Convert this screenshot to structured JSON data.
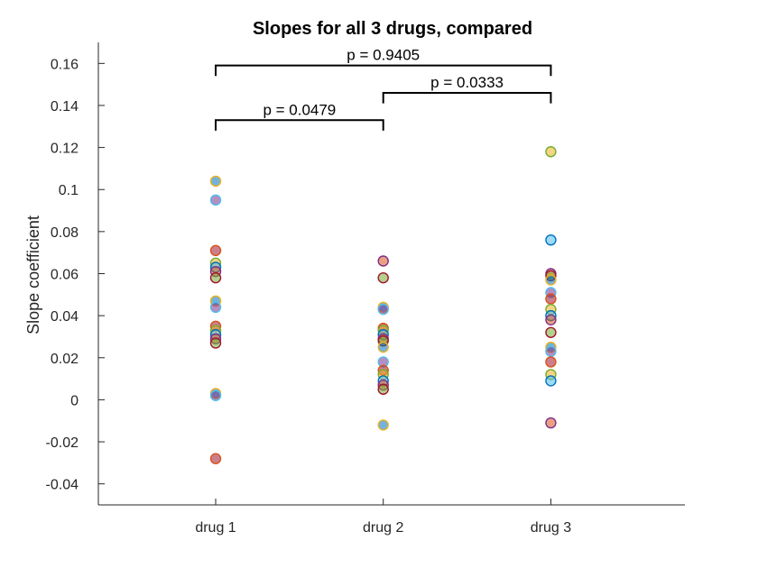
{
  "chart_data": {
    "type": "scatter",
    "title": "Slopes for all 3 drugs, compared",
    "xlabel": "",
    "ylabel": "Slope coefficient",
    "categories": [
      "drug 1",
      "drug 2",
      "drug 3"
    ],
    "xlim": [
      0.3,
      3.8
    ],
    "ylim": [
      -0.05,
      0.17
    ],
    "yticks": [
      "-0.04",
      "-0.02",
      "0",
      "0.02",
      "0.04",
      "0.06",
      "0.08",
      "0.1",
      "0.12",
      "0.14",
      "0.16"
    ],
    "grid": false,
    "series": [
      {
        "category": "drug 1",
        "values": [
          0.104,
          0.095,
          0.071,
          0.065,
          0.063,
          0.061,
          0.058,
          0.047,
          0.044,
          0.035,
          0.033,
          0.031,
          0.029,
          0.027,
          0.003,
          0.002,
          -0.028
        ]
      },
      {
        "category": "drug 2",
        "values": [
          0.066,
          0.058,
          0.044,
          0.043,
          0.034,
          0.033,
          0.031,
          0.029,
          0.028,
          0.025,
          0.018,
          0.014,
          0.012,
          0.009,
          0.007,
          0.005,
          -0.012
        ]
      },
      {
        "category": "drug 3",
        "values": [
          0.118,
          0.076,
          0.06,
          0.059,
          0.057,
          0.051,
          0.048,
          0.043,
          0.04,
          0.038,
          0.032,
          0.025,
          0.023,
          0.018,
          0.012,
          0.009,
          -0.011
        ]
      }
    ],
    "comparisons": [
      {
        "from": "drug 1",
        "to": "drug 2",
        "label": "p = 0.0479",
        "level": 0.133
      },
      {
        "from": "drug 2",
        "to": "drug 3",
        "label": "p = 0.0333",
        "level": 0.146
      },
      {
        "from": "drug 1",
        "to": "drug 3",
        "label": "p = 0.9405",
        "level": 0.159
      }
    ],
    "point_colors": [
      "#0072BD",
      "#D95319",
      "#EDB120",
      "#7E2F8E",
      "#77AC30",
      "#4DBEEE",
      "#A2142F"
    ]
  }
}
